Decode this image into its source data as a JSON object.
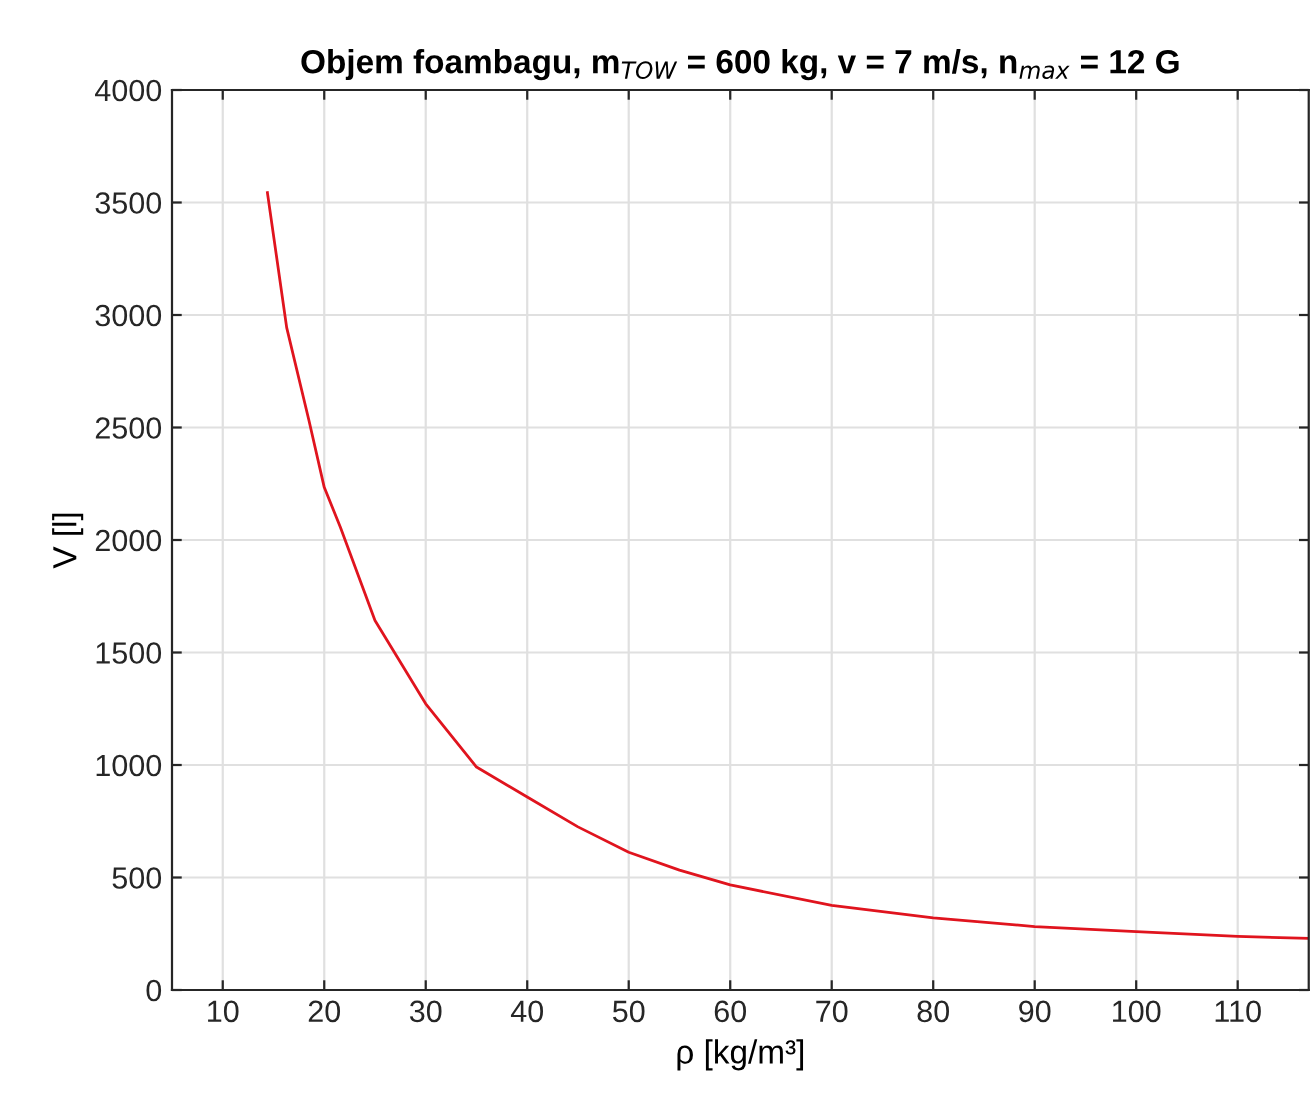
{
  "chart_data": {
    "type": "line",
    "title": "Objem foambagu, m$_{TOW}$ = 600 kg, v = 7 m/s, n$_{max}$ = 12 G",
    "xlabel": "ρ [kg/m³]",
    "ylabel": "V [l]",
    "x": [
      14.4,
      16.3,
      18.5,
      20,
      21.6,
      25,
      30,
      35,
      40,
      45,
      50,
      55,
      60,
      70,
      80,
      90,
      100,
      110,
      117
    ],
    "series": [
      {
        "color": "#e0141e",
        "values": [
          3544,
          2944,
          2530,
          2234,
          2056,
          1642,
          1272,
          991,
          858,
          725,
          612,
          533,
          467,
          376,
          321,
          282,
          259,
          238,
          229
        ]
      }
    ],
    "xlim": [
      5,
      117
    ],
    "xticks": [
      10,
      20,
      30,
      40,
      50,
      60,
      70,
      80,
      90,
      100,
      110
    ],
    "ylim": [
      0,
      4000
    ],
    "yticks": [
      0,
      500,
      1000,
      1500,
      2000,
      2500,
      3000,
      3500,
      4000
    ],
    "grid": true,
    "marker": "none",
    "line_style": "solid"
  }
}
